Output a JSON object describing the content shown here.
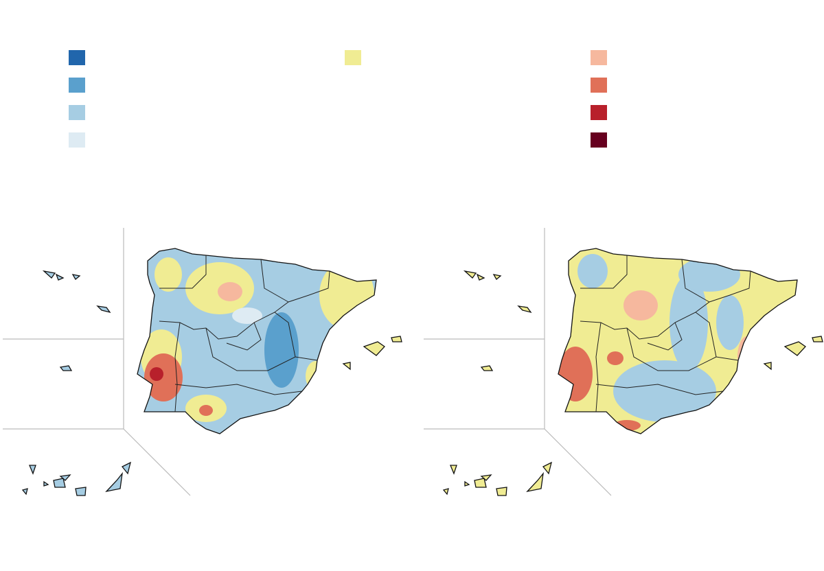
{
  "legend": {
    "groups": [
      {
        "colors": [
          "#2166ac",
          "#5aa0cd",
          "#a6cde3",
          "#deebf3"
        ]
      },
      {
        "colors": [
          "#f0ec93"
        ]
      },
      {
        "colors": [
          "#f6b89e",
          "#e07058",
          "#b8202b",
          "#67001f"
        ]
      }
    ]
  }
}
